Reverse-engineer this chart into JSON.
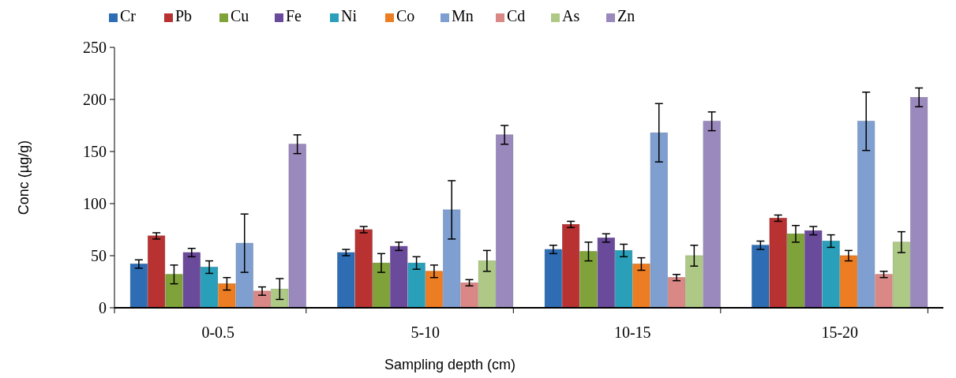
{
  "chart_data": {
    "type": "bar",
    "xlabel": "Sampling depth (cm)",
    "ylabel": "Conc (µg/g)",
    "categories": [
      "0-0.5",
      "5-10",
      "10-15",
      "15-20"
    ],
    "ylim": [
      0,
      250
    ],
    "yticks": [
      0,
      50,
      100,
      150,
      200,
      250
    ],
    "legend": "top",
    "grid": false,
    "series": [
      {
        "name": "Cr",
        "color": "#2e6db4",
        "values": [
          42,
          53,
          56,
          60
        ],
        "errors": [
          4,
          3,
          4,
          4
        ]
      },
      {
        "name": "Pb",
        "color": "#b83232",
        "values": [
          69,
          75,
          80,
          86
        ],
        "errors": [
          3,
          3,
          3,
          3
        ]
      },
      {
        "name": "Cu",
        "color": "#7fa33a",
        "values": [
          32,
          43,
          54,
          71
        ],
        "errors": [
          9,
          9,
          9,
          8
        ]
      },
      {
        "name": "Fe",
        "color": "#6a4a9a",
        "values": [
          53,
          59,
          67,
          74
        ],
        "errors": [
          4,
          4,
          4,
          4
        ]
      },
      {
        "name": "Ni",
        "color": "#2a9fba",
        "values": [
          39,
          43,
          55,
          64
        ],
        "errors": [
          6,
          6,
          6,
          6
        ]
      },
      {
        "name": "Co",
        "color": "#ec7d22",
        "values": [
          23,
          35,
          42,
          50
        ],
        "errors": [
          6,
          6,
          6,
          5
        ]
      },
      {
        "name": "Mn",
        "color": "#7f9fd0",
        "values": [
          62,
          94,
          168,
          179
        ],
        "errors": [
          28,
          28,
          28,
          28
        ]
      },
      {
        "name": "Cd",
        "color": "#d98886",
        "values": [
          16,
          24,
          29,
          32
        ],
        "errors": [
          4,
          3,
          3,
          3
        ]
      },
      {
        "name": "As",
        "color": "#aec986",
        "values": [
          18,
          45,
          50,
          63
        ],
        "errors": [
          10,
          10,
          10,
          10
        ]
      },
      {
        "name": "Zn",
        "color": "#9a89bd",
        "values": [
          157,
          166,
          179,
          202
        ],
        "errors": [
          9,
          9,
          9,
          9
        ]
      }
    ]
  }
}
